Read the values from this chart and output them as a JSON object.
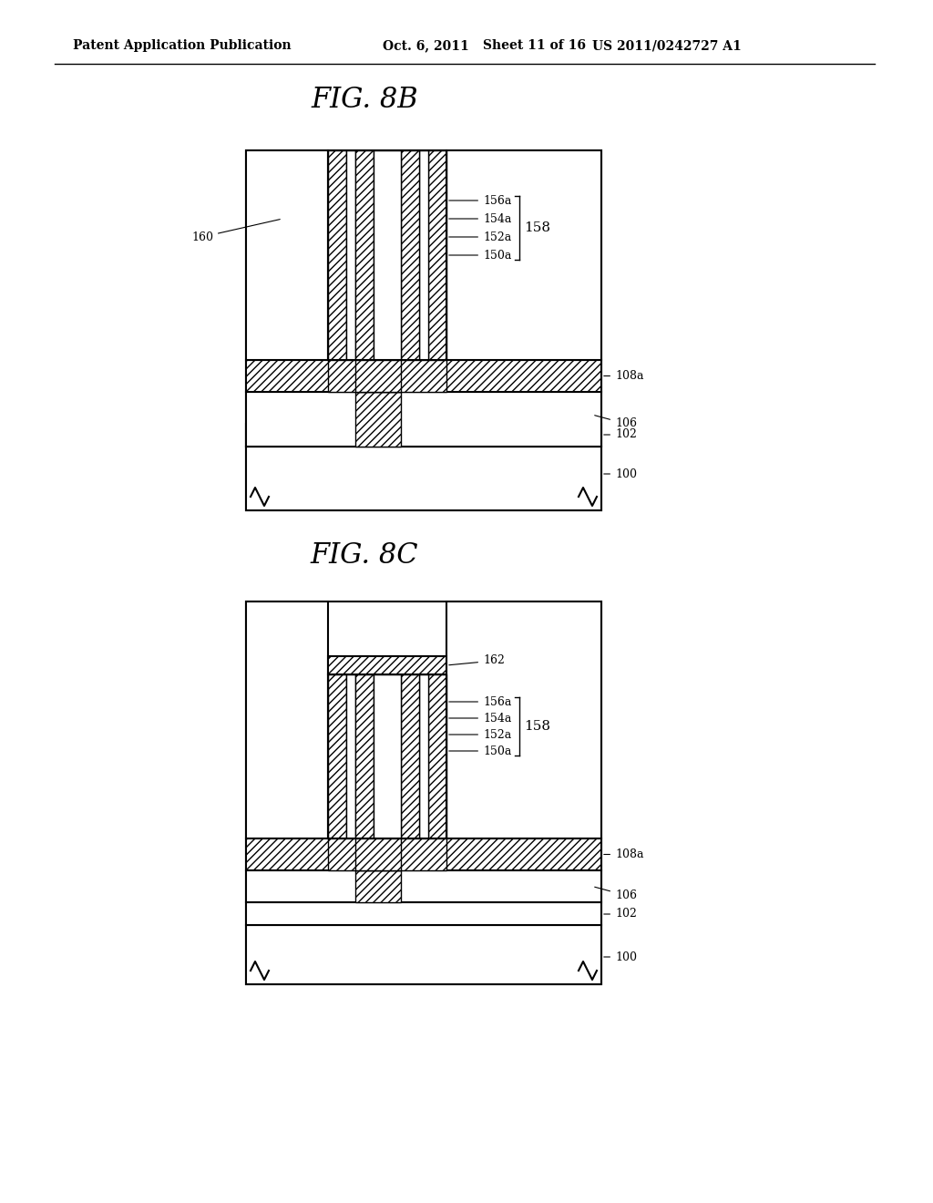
{
  "bg_color": "#ffffff",
  "header_text": "Patent Application Publication",
  "header_date": "Oct. 6, 2011",
  "header_sheet": "Sheet 11 of 16",
  "header_patent": "US 2011/0242727 A1",
  "fig8b_title": "FIG. 8B",
  "fig8c_title": "FIG. 8C",
  "hatch_pattern": "////",
  "line_color": "#000000",
  "hatch_color": "#000000"
}
